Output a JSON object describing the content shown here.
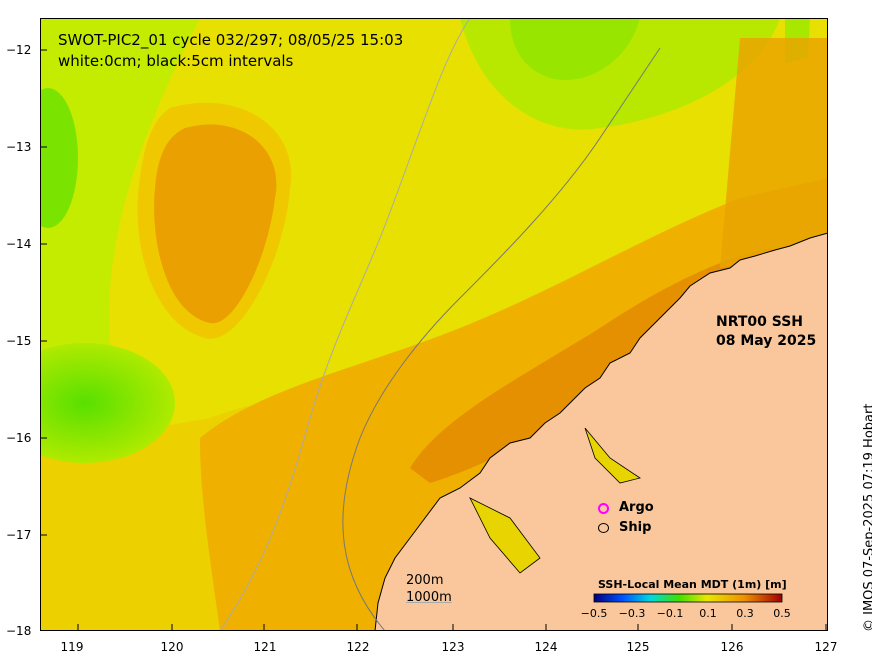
{
  "title_line1": "SWOT-PIC2_01 cycle 032/297; 08/05/25 15:03",
  "title_line2": "white:0cm; black:5cm intervals",
  "product_line1": "NRT00 SSH",
  "product_line2": "08 May 2025",
  "legend": {
    "argo": "Argo",
    "ship": "Ship"
  },
  "contour_key": {
    "line1": "200m",
    "line2": "1000m"
  },
  "colorbar": {
    "title": "SSH-Local Mean MDT (1m) [m]",
    "ticks": [
      "−0.5",
      "−0.3",
      "−0.1",
      "0.1",
      "0.3",
      "0.5"
    ]
  },
  "copyright": "© IMOS 07-Sep-2025 07:19 Hobart",
  "x_ticks": [
    "119",
    "120",
    "121",
    "122",
    "123",
    "124",
    "125",
    "126",
    "127"
  ],
  "y_ticks": [
    "−12",
    "−13",
    "−14",
    "−15",
    "−16",
    "−17",
    "−18"
  ],
  "colors": {
    "land": "#f9c79b",
    "high": "#e88a00",
    "mid": "#f0c000",
    "low": "#55e000"
  }
}
